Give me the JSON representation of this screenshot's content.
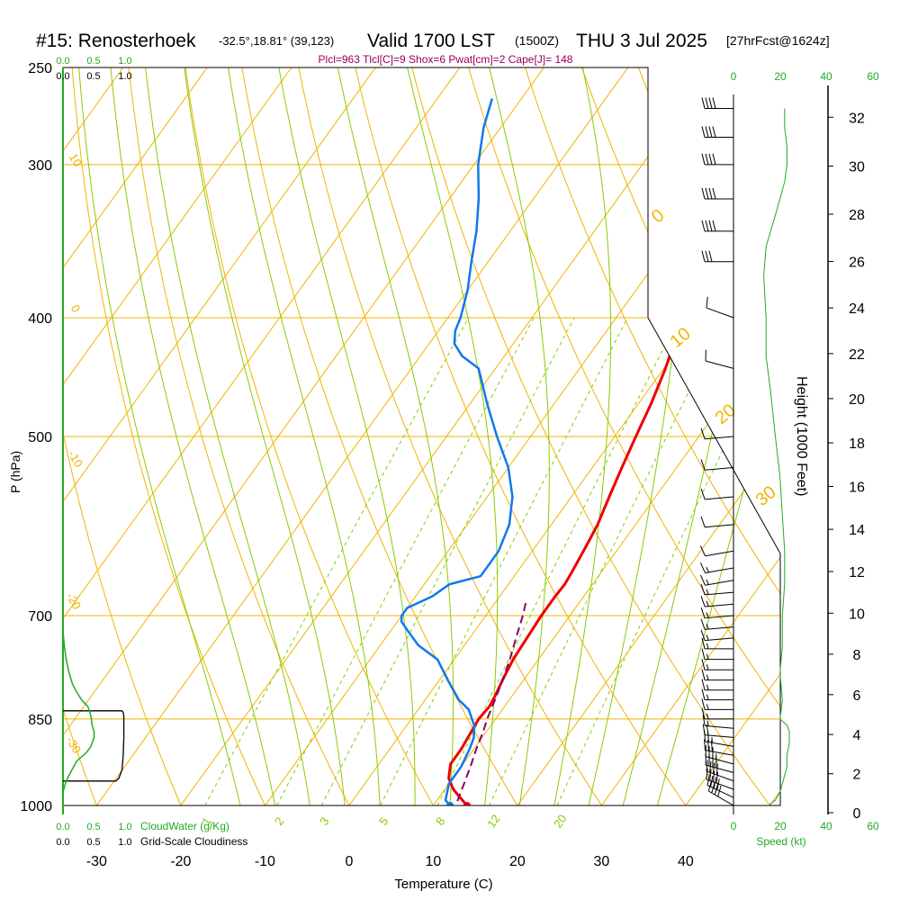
{
  "header": {
    "station": "#15: Renosterhoek",
    "coords": "-32.5°,18.81° (39,123)",
    "valid": "Valid 1700 LST",
    "utc": "(1500Z)",
    "date": "THU 3 Jul 2025",
    "forecast": "[27hrFcst@1624z]",
    "indices": "Plcl=963 Tlcl[C]=9 Shox=6 Pwat[cm]=2 Cape[J]= 148"
  },
  "labels": {
    "ylabel": "P (hPa)",
    "xlabel": "Temperature (C)",
    "height_label": "Height (1000 Feet)",
    "cloudwater_label": "CloudWater (g/Kg)",
    "cloudiness_label": "Grid-Scale Cloudiness",
    "speed_label": "Speed (kt)"
  },
  "scales": {
    "cloud_top_green": [
      "0.0",
      "0.5",
      "1.0"
    ],
    "cloud_top_black": [
      "0.0",
      "0.5",
      "1.0"
    ],
    "cloud_bottom_green": [
      "0.0",
      "0.5",
      "1.0"
    ],
    "cloud_bottom_black": [
      "0.0",
      "0.5",
      "1.0"
    ],
    "speed_top": [
      "0",
      "20",
      "40",
      "60"
    ],
    "speed_bottom": [
      "0",
      "20",
      "40",
      "60"
    ]
  },
  "colors": {
    "isobar": "#f0b400",
    "dry_adiabat": "#f0b400",
    "moist_adiabat": "#88cc00",
    "mixing_ratio": "#88cc00",
    "temperature": "#ee0000",
    "dewpoint": "#1177ee",
    "parcel": "#880066",
    "cloud": "#22aa22",
    "speed": "#22aa22",
    "indices_text": "#990055"
  },
  "chart_data": {
    "type": "line",
    "title": "#15: Renosterhoek",
    "xlabel": "Temperature (C)",
    "ylabel": "P (hPa)",
    "xlim": [
      -34,
      46
    ],
    "ylim": [
      1000,
      250
    ],
    "y_scale": "log-pressure",
    "x_ticks": [
      -30,
      -20,
      -10,
      0,
      10,
      20,
      30,
      40
    ],
    "pressure_ticks": [
      1000,
      850,
      700,
      500,
      400,
      300,
      250
    ],
    "height_ticks_kft": [
      0,
      2,
      4,
      6,
      8,
      10,
      12,
      14,
      16,
      18,
      20,
      22,
      24,
      26,
      28,
      30,
      32
    ],
    "dry_adiabat_labels": [
      "10",
      "0",
      "-10",
      "-20",
      "-30"
    ],
    "hot_adiabat_labels": [
      "0",
      "10",
      "20",
      "30"
    ],
    "mixing_ratio_labels": [
      "1",
      "2",
      "3",
      "5",
      "8",
      "12",
      "20"
    ],
    "series": [
      {
        "p": [
          1000,
          985,
          970,
          950,
          925,
          900,
          870,
          850,
          830,
          815,
          790,
          760,
          730,
          700,
          690,
          675,
          660,
          645,
          615,
          590,
          560,
          530,
          500,
          470,
          440,
          410,
          380,
          360,
          345,
          330,
          315,
          300,
          285,
          270
        ],
        "t": [
          14.0,
          12.5,
          11.0,
          9.5,
          8.5,
          8.5,
          8.2,
          8.0,
          8.2,
          8.0,
          7.5,
          7.0,
          6.8,
          6.6,
          6.6,
          6.6,
          6.7,
          6.5,
          6.0,
          5.5,
          4.5,
          3.5,
          2.5,
          1.5,
          0.2,
          -1.5,
          -3.5,
          -5.0,
          -6.0,
          -6.5,
          -6.8,
          -7.0,
          -7.2,
          -7.2
        ]
      },
      {
        "p": [
          1000,
          990,
          960,
          930,
          900,
          880,
          860,
          850,
          835,
          820,
          790,
          760,
          740,
          720,
          708,
          700,
          690,
          675,
          660,
          650,
          620,
          590,
          560,
          530,
          500,
          470,
          440,
          430,
          420,
          410,
          400,
          380,
          360,
          340,
          320,
          300,
          280,
          265
        ],
        "t": [
          12.0,
          11.0,
          10.0,
          10.0,
          9.5,
          9.0,
          8.0,
          7.2,
          6.0,
          4.0,
          1.0,
          -2.0,
          -5.5,
          -8.0,
          -9.5,
          -10.0,
          -10.0,
          -8.0,
          -7.0,
          -4.0,
          -4.0,
          -5.0,
          -7.0,
          -10.0,
          -14.0,
          -18.0,
          -22.0,
          -25.0,
          -27.0,
          -28.0,
          -28.5,
          -30.0,
          -32.0,
          -34.0,
          -36.5,
          -39.5,
          -42.0,
          -43.5
        ]
      },
      {
        "p": [
          992,
          960,
          930,
          900,
          870,
          850,
          820,
          790,
          760,
          730,
          700,
          680
        ],
        "t": [
          12.5,
          11.8,
          11.1,
          10.3,
          9.6,
          9.0,
          8.3,
          7.5,
          6.6,
          5.5,
          4.4,
          3.5
        ]
      }
    ]
  },
  "wind_barbs": [
    {
      "p": 1000,
      "dir": 300,
      "kt": 40
    },
    {
      "p": 985,
      "dir": 295,
      "kt": 40
    },
    {
      "p": 970,
      "dir": 290,
      "kt": 40
    },
    {
      "p": 955,
      "dir": 290,
      "kt": 40
    },
    {
      "p": 940,
      "dir": 285,
      "kt": 38
    },
    {
      "p": 925,
      "dir": 285,
      "kt": 35
    },
    {
      "p": 910,
      "dir": 280,
      "kt": 30
    },
    {
      "p": 895,
      "dir": 280,
      "kt": 25
    },
    {
      "p": 880,
      "dir": 275,
      "kt": 20
    },
    {
      "p": 865,
      "dir": 275,
      "kt": 15
    },
    {
      "p": 850,
      "dir": 270,
      "kt": 15
    },
    {
      "p": 835,
      "dir": 270,
      "kt": 15
    },
    {
      "p": 820,
      "dir": 270,
      "kt": 15
    },
    {
      "p": 805,
      "dir": 270,
      "kt": 15
    },
    {
      "p": 790,
      "dir": 270,
      "kt": 15
    },
    {
      "p": 775,
      "dir": 270,
      "kt": 15
    },
    {
      "p": 760,
      "dir": 270,
      "kt": 15
    },
    {
      "p": 745,
      "dir": 270,
      "kt": 15
    },
    {
      "p": 730,
      "dir": 265,
      "kt": 15
    },
    {
      "p": 715,
      "dir": 265,
      "kt": 15
    },
    {
      "p": 700,
      "dir": 265,
      "kt": 15
    },
    {
      "p": 685,
      "dir": 265,
      "kt": 15
    },
    {
      "p": 670,
      "dir": 265,
      "kt": 15
    },
    {
      "p": 655,
      "dir": 260,
      "kt": 15
    },
    {
      "p": 640,
      "dir": 260,
      "kt": 15
    },
    {
      "p": 620,
      "dir": 260,
      "kt": 10
    },
    {
      "p": 590,
      "dir": 265,
      "kt": 10
    },
    {
      "p": 560,
      "dir": 265,
      "kt": 10
    },
    {
      "p": 530,
      "dir": 265,
      "kt": 10
    },
    {
      "p": 500,
      "dir": 265,
      "kt": 10
    },
    {
      "p": 440,
      "dir": 285,
      "kt": 10
    },
    {
      "p": 400,
      "dir": 290,
      "kt": 10
    },
    {
      "p": 360,
      "dir": 270,
      "kt": 30
    },
    {
      "p": 340,
      "dir": 270,
      "kt": 40
    },
    {
      "p": 320,
      "dir": 270,
      "kt": 40
    },
    {
      "p": 300,
      "dir": 270,
      "kt": 40
    },
    {
      "p": 285,
      "dir": 270,
      "kt": 40
    },
    {
      "p": 270,
      "dir": 270,
      "kt": 40
    }
  ],
  "wind_speed_profile": {
    "p": [
      1000,
      990,
      975,
      960,
      945,
      930,
      910,
      890,
      870,
      860,
      850,
      820,
      780,
      740,
      700,
      660,
      620,
      580,
      540,
      500,
      460,
      430,
      400,
      370,
      350,
      330,
      310,
      300,
      290,
      280,
      270
    ],
    "kt": [
      15,
      18,
      20,
      21,
      22,
      23,
      23,
      24,
      24,
      23,
      20,
      21,
      20,
      21,
      21,
      22,
      22,
      21,
      20,
      18,
      16,
      14,
      14,
      13,
      14,
      18,
      22,
      23,
      23,
      22,
      22
    ]
  },
  "cloud_water_profile": {
    "p": [
      1000,
      975,
      955,
      940,
      920,
      905,
      895,
      880,
      870,
      860,
      845,
      830,
      820,
      805,
      795,
      780,
      760,
      740,
      720
    ],
    "v": [
      0,
      0,
      0.05,
      0.12,
      0.22,
      0.38,
      0.45,
      0.5,
      0.5,
      0.47,
      0.45,
      0.4,
      0.3,
      0.2,
      0.15,
      0.1,
      0.05,
      0.02,
      0
    ]
  },
  "cloudiness_profile": {
    "p": [
      955,
      955,
      950,
      935,
      910,
      880,
      860,
      845,
      840,
      837,
      837
    ],
    "v": [
      0,
      0.85,
      0.9,
      0.95,
      0.97,
      0.98,
      0.98,
      0.98,
      0.97,
      0.95,
      0
    ]
  }
}
